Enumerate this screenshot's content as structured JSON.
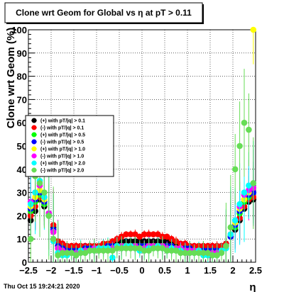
{
  "chart_data": {
    "type": "scatter",
    "title": "Clone wrt Geom for Global vs   η at pT > 0.11",
    "xlabel": "η",
    "ylabel": "Clone wrt Geom (%)",
    "xlim": [
      -2.5,
      2.5
    ],
    "ylim": [
      0,
      100
    ],
    "x_ticks": [
      "−2.5",
      "−2",
      "−1.5",
      "−1",
      "−0.5",
      "0",
      "0.5",
      "1",
      "1.5",
      "2",
      "2.5"
    ],
    "y_ticks": [
      "0",
      "10",
      "20",
      "30",
      "40",
      "50",
      "60",
      "70",
      "80",
      "90",
      "100"
    ],
    "grid": true,
    "legend_position": "left-middle",
    "footer": "Thu Oct 15 19:24:21 2020",
    "series": [
      {
        "name": "(+) with pT/|q| > 0.1",
        "color": "#000000",
        "x": [
          -2.45,
          -2.35,
          -2.25,
          -2.15,
          -2.05,
          -1.95,
          -1.85,
          -1.75,
          -1.65,
          -1.55,
          -1.45,
          -1.35,
          -1.25,
          -1.15,
          -1.05,
          -0.95,
          -0.85,
          -0.75,
          -0.65,
          -0.55,
          -0.45,
          -0.35,
          -0.25,
          -0.15,
          -0.05,
          0.05,
          0.15,
          0.25,
          0.35,
          0.45,
          0.55,
          0.65,
          0.75,
          0.85,
          0.95,
          1.05,
          1.15,
          1.25,
          1.35,
          1.45,
          1.55,
          1.65,
          1.75,
          1.85,
          1.95,
          2.05,
          2.15,
          2.25,
          2.35,
          2.45
        ],
        "y": [
          18,
          22,
          27,
          24,
          20,
          15,
          9,
          8,
          7,
          7,
          7,
          7,
          7,
          7,
          7,
          7,
          7,
          8,
          8,
          8,
          9,
          9,
          9,
          9,
          9,
          9,
          9,
          9,
          9,
          9,
          9,
          8,
          8,
          8,
          8,
          7,
          7,
          7,
          7,
          7,
          7,
          7,
          7,
          8,
          11,
          14,
          18,
          23,
          26,
          27
        ]
      },
      {
        "name": "(-) with pT/|q| > 0.1",
        "color": "#ff0000",
        "x": [
          -2.45,
          -2.35,
          -2.25,
          -2.15,
          -2.05,
          -1.95,
          -1.85,
          -1.75,
          -1.65,
          -1.55,
          -1.45,
          -1.35,
          -1.25,
          -1.15,
          -1.05,
          -0.95,
          -0.85,
          -0.75,
          -0.65,
          -0.55,
          -0.45,
          -0.35,
          -0.25,
          -0.15,
          -0.05,
          0.05,
          0.15,
          0.25,
          0.35,
          0.45,
          0.55,
          0.65,
          0.75,
          0.85,
          0.95,
          1.05,
          1.15,
          1.25,
          1.35,
          1.45,
          1.55,
          1.65,
          1.75,
          1.85,
          1.95,
          2.05,
          2.15,
          2.25,
          2.35,
          2.45
        ],
        "y": [
          20,
          24,
          28,
          25,
          21,
          16,
          9,
          8,
          7,
          7,
          7,
          7,
          7,
          7,
          7,
          7,
          8,
          8,
          9,
          10,
          11,
          12,
          12,
          12,
          11,
          12,
          12,
          12,
          12,
          11,
          11,
          10,
          9,
          8,
          8,
          7,
          7,
          7,
          7,
          7,
          7,
          7,
          7,
          8,
          12,
          15,
          19,
          24,
          27,
          28
        ]
      },
      {
        "name": "(+) with pT/|q| > 0.5",
        "color": "#00ff00",
        "x": [
          -2.45,
          -2.35,
          -2.25,
          -2.15,
          -2.05,
          -1.95,
          -1.85,
          -1.75,
          -1.65,
          -1.55,
          -1.45,
          -1.35,
          -1.25,
          -1.15,
          -1.05,
          -0.95,
          -0.85,
          -0.75,
          -0.65,
          -0.55,
          -0.45,
          -0.35,
          -0.25,
          -0.15,
          -0.05,
          0.05,
          0.15,
          0.25,
          0.35,
          0.45,
          0.55,
          0.65,
          0.75,
          0.85,
          0.95,
          1.05,
          1.15,
          1.25,
          1.35,
          1.45,
          1.55,
          1.65,
          1.75,
          1.85,
          1.95,
          2.05,
          2.15,
          2.25,
          2.35,
          2.45
        ],
        "y": [
          22,
          26,
          29,
          25,
          20,
          14,
          7,
          6,
          5,
          5,
          5,
          5,
          6,
          6,
          6,
          6,
          6,
          7,
          7,
          7,
          7,
          7,
          7,
          7,
          7,
          7,
          7,
          7,
          7,
          7,
          7,
          7,
          6,
          6,
          6,
          6,
          5,
          5,
          5,
          5,
          5,
          5,
          5,
          7,
          11,
          15,
          21,
          26,
          28,
          30
        ]
      },
      {
        "name": "(-) with pT/|q| > 0.5",
        "color": "#0000ff",
        "x": [
          -2.45,
          -2.35,
          -2.25,
          -2.15,
          -2.05,
          -1.95,
          -1.85,
          -1.75,
          -1.65,
          -1.55,
          -1.45,
          -1.35,
          -1.25,
          -1.15,
          -1.05,
          -0.95,
          -0.85,
          -0.75,
          -0.65,
          -0.55,
          -0.45,
          -0.35,
          -0.25,
          -0.15,
          -0.05,
          0.05,
          0.15,
          0.25,
          0.35,
          0.45,
          0.55,
          0.65,
          0.75,
          0.85,
          0.95,
          1.05,
          1.15,
          1.25,
          1.35,
          1.45,
          1.55,
          1.65,
          1.75,
          1.85,
          1.95,
          2.05,
          2.15,
          2.25,
          2.35,
          2.45
        ],
        "y": [
          23,
          27,
          30,
          26,
          21,
          14,
          7,
          6,
          5,
          5,
          5,
          5,
          6,
          6,
          6,
          6,
          6,
          7,
          7,
          7,
          7,
          7,
          7,
          7,
          7,
          7,
          7,
          7,
          7,
          7,
          7,
          7,
          6,
          6,
          6,
          6,
          5,
          5,
          5,
          5,
          5,
          5,
          5,
          7,
          11,
          16,
          22,
          27,
          29,
          30
        ]
      },
      {
        "name": "(+) with pT/|q| > 1.0",
        "color": "#ffff00",
        "x": [
          -2.45,
          -2.35,
          -2.25,
          -2.15,
          -2.05,
          -1.95,
          -1.85,
          -1.75,
          -1.65,
          -1.55,
          -1.45,
          -1.35,
          -1.25,
          -1.15,
          -1.05,
          -0.95,
          -0.85,
          -0.75,
          -0.65,
          -0.55,
          -0.45,
          -0.35,
          -0.25,
          -0.15,
          -0.05,
          0.05,
          0.15,
          0.25,
          0.35,
          0.45,
          0.55,
          0.65,
          0.75,
          0.85,
          0.95,
          1.05,
          1.15,
          1.25,
          1.35,
          1.45,
          1.55,
          1.65,
          1.75,
          1.85,
          1.95,
          2.05,
          2.15,
          2.25,
          2.35,
          2.45
        ],
        "y": [
          24,
          28,
          31,
          27,
          20,
          13,
          6,
          5,
          4,
          4,
          4,
          5,
          5,
          5,
          6,
          6,
          6,
          6,
          6,
          7,
          7,
          7,
          7,
          7,
          6,
          6,
          7,
          7,
          7,
          7,
          6,
          6,
          6,
          6,
          5,
          5,
          5,
          5,
          4,
          4,
          4,
          4,
          5,
          7,
          12,
          17,
          23,
          27,
          30,
          100
        ]
      },
      {
        "name": "(-) with pT/|q| > 1.0",
        "color": "#ff00ff",
        "x": [
          -2.45,
          -2.35,
          -2.25,
          -2.15,
          -2.05,
          -1.95,
          -1.85,
          -1.75,
          -1.65,
          -1.55,
          -1.45,
          -1.35,
          -1.25,
          -1.15,
          -1.05,
          -0.95,
          -0.85,
          -0.75,
          -0.65,
          -0.55,
          -0.45,
          -0.35,
          -0.25,
          -0.15,
          -0.05,
          0.05,
          0.15,
          0.25,
          0.35,
          0.45,
          0.55,
          0.65,
          0.75,
          0.85,
          0.95,
          1.05,
          1.15,
          1.25,
          1.35,
          1.45,
          1.55,
          1.65,
          1.75,
          1.85,
          1.95,
          2.05,
          2.15,
          2.25,
          2.35,
          2.45
        ],
        "y": [
          26,
          30,
          33,
          28,
          21,
          13,
          6,
          5,
          4,
          4,
          4,
          5,
          5,
          5,
          6,
          6,
          6,
          6,
          6,
          7,
          7,
          7,
          7,
          7,
          6,
          6,
          7,
          7,
          7,
          7,
          6,
          6,
          6,
          6,
          5,
          5,
          5,
          5,
          4,
          4,
          4,
          4,
          5,
          7,
          12,
          18,
          24,
          29,
          31,
          32
        ]
      },
      {
        "name": "(+) with pT/|q| > 2.0",
        "color": "#00ffff",
        "x": [
          -2.45,
          -2.35,
          -2.25,
          -2.15,
          -2.05,
          -1.95,
          -1.85,
          -1.75,
          -1.65,
          -1.55,
          -1.45,
          -1.35,
          -1.25,
          -1.15,
          -1.05,
          -0.95,
          -0.85,
          -0.75,
          -0.65,
          -0.55,
          -0.45,
          -0.35,
          -0.25,
          -0.15,
          -0.05,
          0.05,
          0.15,
          0.25,
          0.35,
          0.45,
          0.55,
          0.65,
          0.75,
          0.85,
          0.95,
          1.05,
          1.15,
          1.25,
          1.35,
          1.45,
          1.55,
          1.65,
          1.75,
          1.85,
          1.95,
          2.05,
          2.15,
          2.25,
          2.35,
          2.45
        ],
        "y": [
          25,
          30,
          35,
          28,
          20,
          9,
          4,
          3,
          3,
          4,
          3,
          5,
          4,
          5,
          5,
          6,
          6,
          6,
          2,
          7,
          6,
          7,
          7,
          6,
          5,
          5,
          6,
          6,
          7,
          6,
          5,
          6,
          5,
          5,
          4,
          4,
          4,
          5,
          3,
          3,
          3,
          3,
          5,
          6,
          12,
          18,
          25,
          30,
          33,
          34
        ]
      },
      {
        "name": "(-) with pT/|q| > 2.0",
        "color": "#66dd55",
        "x": [
          -2.45,
          -2.35,
          -2.25,
          -2.15,
          -2.05,
          -1.95,
          -1.85,
          -1.75,
          -1.65,
          -1.55,
          -1.45,
          -1.35,
          -1.25,
          -1.15,
          -1.05,
          -0.95,
          -0.85,
          -0.75,
          -0.65,
          -0.55,
          -0.45,
          -0.35,
          -0.25,
          -0.15,
          -0.05,
          0.05,
          0.15,
          0.25,
          0.35,
          0.45,
          0.55,
          0.65,
          0.75,
          0.85,
          0.95,
          1.05,
          1.15,
          1.25,
          1.35,
          1.45,
          1.55,
          1.65,
          1.75,
          1.85,
          1.95,
          2.05,
          2.15,
          2.25,
          2.35,
          2.45
        ],
        "y": [
          10,
          37,
          34,
          30,
          20,
          10,
          3,
          4,
          4,
          4,
          3,
          4,
          4,
          5,
          5,
          5,
          5,
          5,
          5,
          6,
          6,
          6,
          6,
          6,
          6,
          5,
          5,
          6,
          6,
          6,
          5,
          5,
          5,
          4,
          4,
          4,
          4,
          4,
          4,
          4,
          3,
          3,
          4,
          7,
          15,
          40,
          50,
          60,
          57,
          34
        ]
      }
    ]
  }
}
